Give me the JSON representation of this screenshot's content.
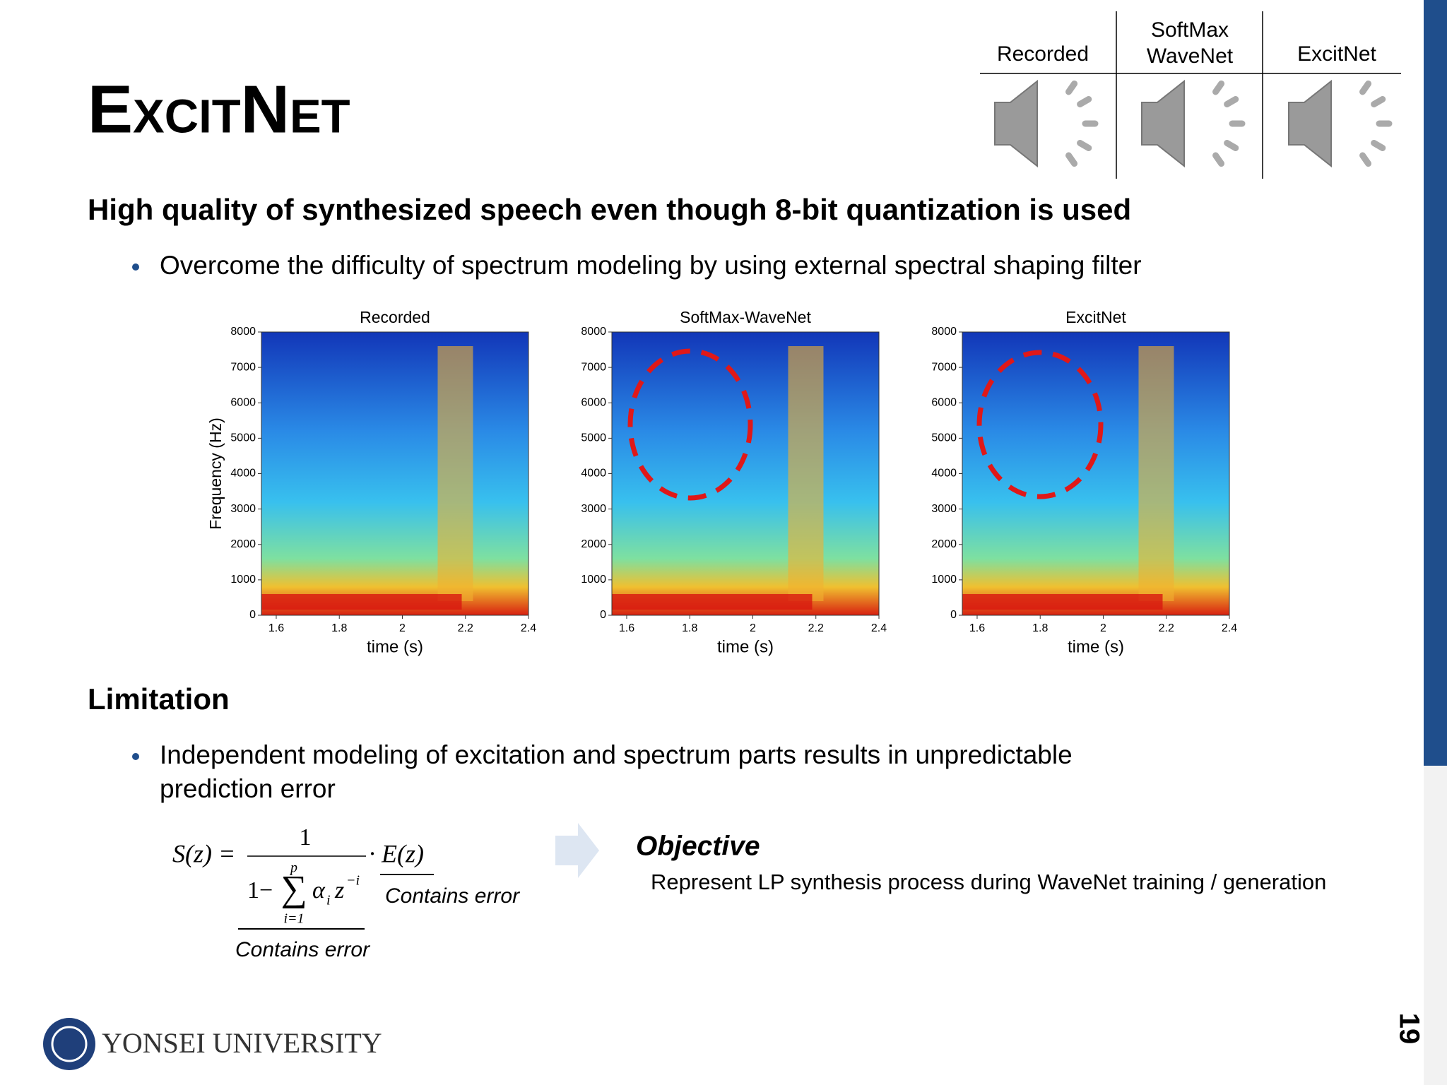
{
  "title": "ExcitNet",
  "audio_table": {
    "headers": [
      [
        "Recorded"
      ],
      [
        "SoftMax",
        "WaveNet"
      ],
      [
        "ExcitNet"
      ]
    ]
  },
  "section1": {
    "heading": "High quality of synthesized speech even though 8-bit quantization is used",
    "bullets": [
      "Overcome the difficulty of spectrum modeling by using external spectral shaping filter"
    ]
  },
  "spectrograms": [
    {
      "title": "Recorded",
      "xlabel": "time (s)",
      "ylabel": "Frequency (Hz)",
      "xlim": [
        1.553,
        2.4
      ],
      "ylim": [
        0,
        8000
      ],
      "xticks": [
        1.6,
        1.8,
        2,
        2.2,
        2.4
      ],
      "yticks": [
        0,
        1000,
        2000,
        3000,
        4000,
        5000,
        6000,
        7000,
        8000
      ]
    },
    {
      "title": "SoftMax-WaveNet",
      "xlabel": "time (s)",
      "xlim": [
        1.553,
        2.4
      ],
      "ylim": [
        0,
        8000
      ],
      "xticks": [
        1.6,
        1.8,
        2,
        2.2,
        2.4
      ],
      "yticks": [
        0,
        1000,
        2000,
        3000,
        4000,
        5000,
        6000,
        7000,
        8000
      ]
    },
    {
      "title": "ExcitNet",
      "xlabel": "time (s)",
      "xlim": [
        1.553,
        2.4
      ],
      "ylim": [
        0,
        8000
      ],
      "xticks": [
        1.6,
        1.8,
        2,
        2.2,
        2.4
      ],
      "yticks": [
        0,
        1000,
        2000,
        3000,
        4000,
        5000,
        6000,
        7000,
        8000
      ]
    }
  ],
  "section2": {
    "heading": "Limitation",
    "bullets": [
      [
        "Independent modeling of excitation and spectrum parts results in unpredictable",
        "prediction error"
      ]
    ]
  },
  "formula": {
    "lhs": "S(z) =",
    "numerator": "1",
    "one_minus": "1−",
    "sum": "∑",
    "upper": "p",
    "lower": "i=1",
    "alpha": "α",
    "alpha_sub": "i",
    "z": "z",
    "z_sup": "−i",
    "rhs": "· E(z)",
    "annotations": [
      "Contains error",
      "Contains error"
    ]
  },
  "objective": {
    "heading": "Objective",
    "text": "Represent LP synthesis process during WaveNet training / generation"
  },
  "footer": {
    "university": "YONSEI UNIVERSITY",
    "page": "19"
  }
}
